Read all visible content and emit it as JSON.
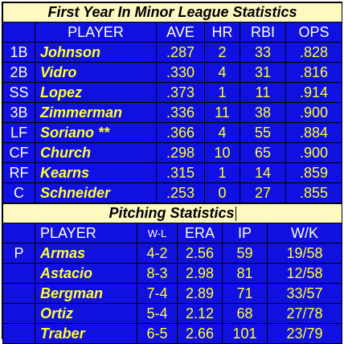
{
  "batting": {
    "title": "First Year In Minor League Statistics",
    "headers": [
      "",
      "PLAYER",
      "AVE",
      "HR",
      "RBI",
      "OPS"
    ],
    "rows": [
      {
        "pos": "1B",
        "player": "Johnson",
        "ave": ".287",
        "hr": "2",
        "rbi": "33",
        "ops": ".828"
      },
      {
        "pos": "2B",
        "player": "Vidro",
        "ave": ".330",
        "hr": "4",
        "rbi": "31",
        "ops": ".816"
      },
      {
        "pos": "SS",
        "player": "Lopez",
        "ave": ".373",
        "hr": "1",
        "rbi": "11",
        "ops": ".914"
      },
      {
        "pos": "3B",
        "player": "Zimmerman",
        "ave": ".336",
        "hr": "11",
        "rbi": "38",
        "ops": ".900"
      },
      {
        "pos": "LF",
        "player": "Soriano **",
        "ave": ".366",
        "hr": "4",
        "rbi": "55",
        "ops": ".884"
      },
      {
        "pos": "CF",
        "player": "Church",
        "ave": ".298",
        "hr": "10",
        "rbi": "65",
        "ops": ".900"
      },
      {
        "pos": "RF",
        "player": "Kearns",
        "ave": ".315",
        "hr": "1",
        "rbi": "14",
        "ops": ".859"
      },
      {
        "pos": "C",
        "player": "Schneider",
        "ave": ".253",
        "hr": "0",
        "rbi": "27",
        "ops": ".855"
      }
    ]
  },
  "pitching": {
    "title": "Pitching Statistics",
    "headers": [
      "",
      "PLAYER",
      "W-L",
      "ERA",
      "IP",
      "W/K"
    ],
    "rows": [
      {
        "pos": "P",
        "player": "Armas",
        "wl": "4-2",
        "era": "2.56",
        "ip": "59",
        "wk": "19/58"
      },
      {
        "pos": "",
        "player": "Astacio",
        "wl": "8-3",
        "era": "2.98",
        "ip": "81",
        "wk": "12/58"
      },
      {
        "pos": "",
        "player": "Bergman",
        "wl": "7-4",
        "era": "2.89",
        "ip": "71",
        "wk": "33/57"
      },
      {
        "pos": "",
        "player": "Ortiz",
        "wl": "5-4",
        "era": "2.12",
        "ip": "68",
        "wk": "27/78"
      },
      {
        "pos": "",
        "player": "Traber",
        "wl": "6-5",
        "era": "2.66",
        "ip": "101",
        "wk": "23/79"
      }
    ]
  },
  "colors": {
    "cell_background": "#1010e0",
    "title_background": "#fff8c0",
    "value_text": "#ffff33",
    "header_text": "#ffffff"
  }
}
